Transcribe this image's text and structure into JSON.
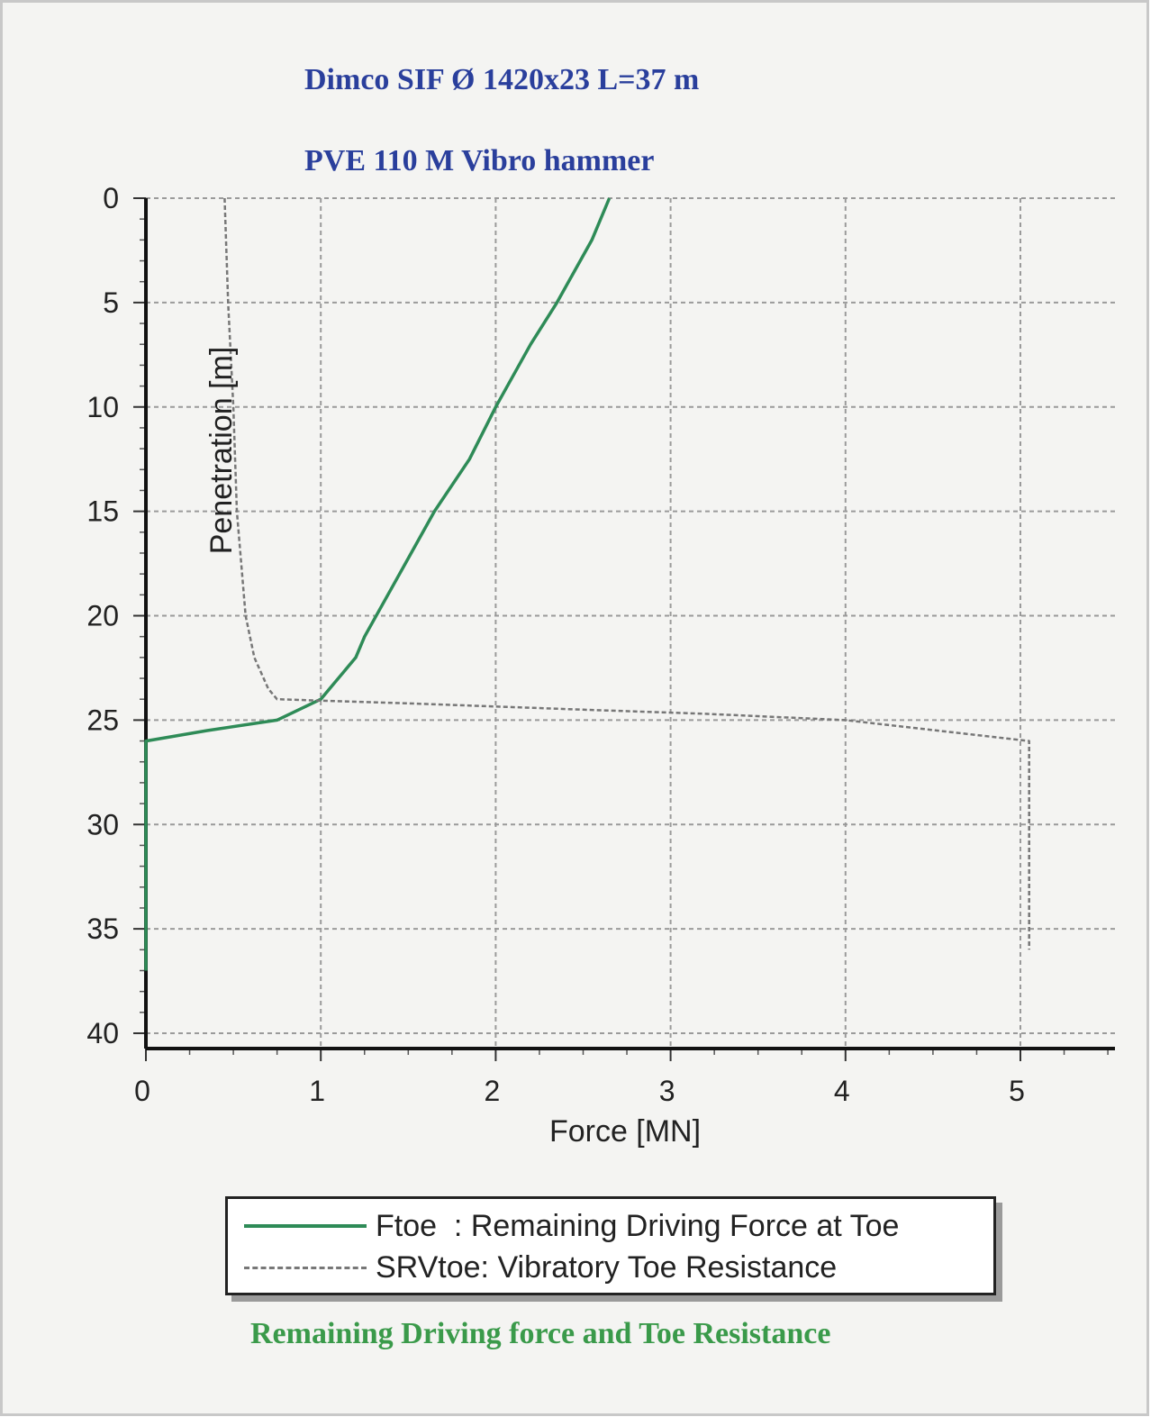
{
  "title_line1": "Dimco SIF Ø 1420x23 L=37 m",
  "title_line2": "PVE 110 M Vibro hammer",
  "caption": "Remaining Driving force and Toe Resistance",
  "chart_data": {
    "type": "line",
    "xlabel": "Force [MN]",
    "ylabel": "Penetration [m]",
    "xlim": [
      0,
      5.5
    ],
    "ylim": [
      0,
      40
    ],
    "y_inverted": true,
    "xticks": [
      0,
      1,
      2,
      3,
      4,
      5
    ],
    "yticks": [
      0,
      5,
      10,
      15,
      20,
      25,
      30,
      35,
      40
    ],
    "grid": true,
    "legend_placement": "bottom",
    "series": [
      {
        "name": "Ftoe  : Remaining Driving Force at Toe",
        "color": "#2e8b57",
        "style": "solid",
        "points": [
          [
            2.65,
            0
          ],
          [
            2.55,
            2
          ],
          [
            2.45,
            3.5
          ],
          [
            2.35,
            5
          ],
          [
            2.2,
            7
          ],
          [
            2.0,
            10
          ],
          [
            1.85,
            12.5
          ],
          [
            1.65,
            15
          ],
          [
            1.45,
            18
          ],
          [
            1.25,
            21
          ],
          [
            1.2,
            22
          ],
          [
            1.0,
            24
          ],
          [
            0.75,
            25
          ],
          [
            0.35,
            25.5
          ],
          [
            0.0,
            26
          ],
          [
            0.0,
            37
          ]
        ]
      },
      {
        "name": "SRVtoe: Vibratory Toe Resistance",
        "color": "#777777",
        "style": "dashed",
        "points": [
          [
            0.45,
            0
          ],
          [
            0.47,
            5
          ],
          [
            0.5,
            10
          ],
          [
            0.52,
            15
          ],
          [
            0.57,
            20
          ],
          [
            0.62,
            22
          ],
          [
            0.7,
            23.5
          ],
          [
            0.75,
            24
          ],
          [
            1.5,
            24.2
          ],
          [
            2.5,
            24.5
          ],
          [
            3.2,
            24.7
          ],
          [
            4.0,
            25.0
          ],
          [
            5.05,
            26.0
          ],
          [
            5.05,
            36
          ]
        ]
      }
    ]
  }
}
